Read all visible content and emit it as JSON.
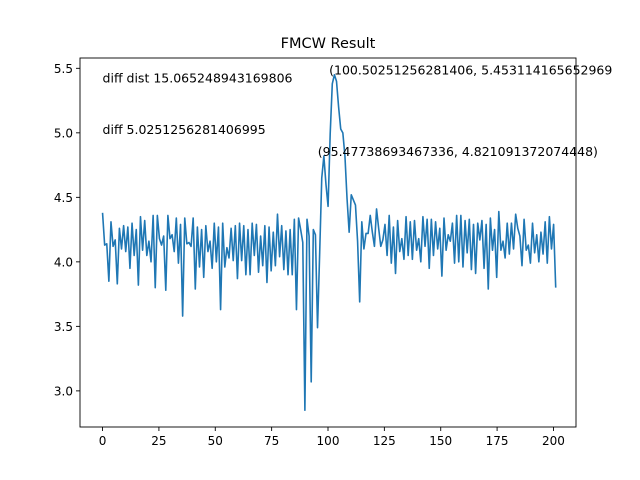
{
  "chart_data": {
    "type": "line",
    "title": "FMCW Result",
    "xlabel": "",
    "ylabel": "",
    "xlim": [
      -10,
      210
    ],
    "ylim": [
      2.72,
      5.58
    ],
    "xticks": [
      0,
      25,
      50,
      75,
      100,
      125,
      150,
      175,
      200
    ],
    "yticks": [
      3.0,
      3.5,
      4.0,
      4.5,
      5.0,
      5.5
    ],
    "xtick_labels": [
      "0",
      "25",
      "50",
      "75",
      "100",
      "125",
      "150",
      "175",
      "200"
    ],
    "ytick_labels": [
      "3.0",
      "3.5",
      "4.0",
      "4.5",
      "5.0",
      "5.5"
    ],
    "grid": false,
    "color": "#1f77b4",
    "x_start": 0,
    "x_end": 201,
    "series": [
      {
        "values": [
          4.38,
          4.13,
          4.14,
          3.85,
          4.31,
          4.12,
          4.17,
          3.83,
          4.26,
          4.1,
          4.28,
          4.08,
          4.27,
          3.95,
          4.3,
          4.05,
          4.25,
          3.82,
          4.35,
          4.09,
          4.32,
          4.05,
          4.16,
          4.0,
          4.36,
          3.8,
          4.36,
          4.18,
          4.13,
          4.2,
          3.78,
          4.36,
          4.18,
          4.21,
          4.08,
          4.34,
          3.99,
          4.29,
          3.58,
          4.34,
          4.14,
          4.15,
          4.12,
          4.34,
          3.79,
          4.27,
          3.96,
          4.25,
          3.88,
          4.28,
          4.08,
          4.16,
          3.95,
          4.3,
          4.0,
          4.27,
          3.63,
          4.3,
          3.96,
          4.11,
          4.03,
          4.26,
          4.01,
          4.28,
          3.87,
          4.3,
          4.01,
          4.28,
          3.9,
          4.25,
          3.9,
          4.3,
          4.05,
          4.29,
          3.92,
          4.2,
          3.97,
          4.28,
          3.84,
          4.27,
          3.93,
          4.23,
          3.97,
          4.37,
          4.04,
          4.28,
          3.94,
          4.24,
          3.9,
          4.25,
          3.9,
          4.33,
          3.63,
          4.34,
          4.25,
          4.15,
          2.85,
          4.33,
          4.2,
          3.07,
          4.25,
          4.21,
          3.49,
          4.06,
          4.65,
          4.82,
          4.6,
          4.43,
          4.99,
          5.38,
          5.45,
          5.4,
          5.2,
          5.03,
          5.0,
          4.82,
          4.49,
          4.23,
          4.52,
          4.48,
          4.44,
          4.16,
          3.69,
          4.31,
          4.1,
          4.22,
          4.22,
          4.36,
          4.23,
          4.12,
          4.41,
          4.26,
          4.12,
          4.17,
          4.29,
          4.05,
          4.36,
          3.99,
          4.27,
          3.91,
          4.32,
          4.08,
          4.18,
          4.02,
          4.35,
          4.05,
          4.31,
          4.02,
          4.32,
          4.09,
          4.18,
          4.0,
          4.35,
          4.12,
          4.33,
          3.95,
          4.33,
          4.05,
          4.31,
          4.1,
          4.26,
          3.89,
          4.34,
          4.09,
          4.21,
          4.16,
          4.3,
          3.99,
          4.36,
          4.0,
          4.36,
          3.96,
          4.32,
          4.07,
          4.33,
          3.94,
          4.29,
          3.91,
          4.3,
          4.17,
          4.32,
          3.95,
          4.29,
          3.79,
          4.34,
          4.09,
          4.25,
          3.88,
          4.39,
          4.09,
          4.16,
          4.03,
          4.3,
          4.06,
          4.3,
          4.1,
          4.37,
          4.26,
          4.2,
          3.97,
          4.33,
          4.09,
          4.13,
          3.99,
          4.3,
          4.07,
          4.21,
          4.0,
          4.23,
          4.06,
          4.31,
          3.99,
          4.35,
          4.1,
          4.29,
          3.8
        ]
      }
    ],
    "annotations": [
      {
        "text": "diff dist 15.065248943169806",
        "x": 0,
        "y": 5.39
      },
      {
        "text": "diff 5.0251256281406995",
        "x": 0,
        "y": 4.99
      },
      {
        "text": "(100.50251256281406, 5.453114165652969",
        "x": 100.5,
        "y": 5.453
      },
      {
        "text": "(95.47738693467336, 4.821091372074448)",
        "x": 95.48,
        "y": 4.821
      }
    ]
  }
}
